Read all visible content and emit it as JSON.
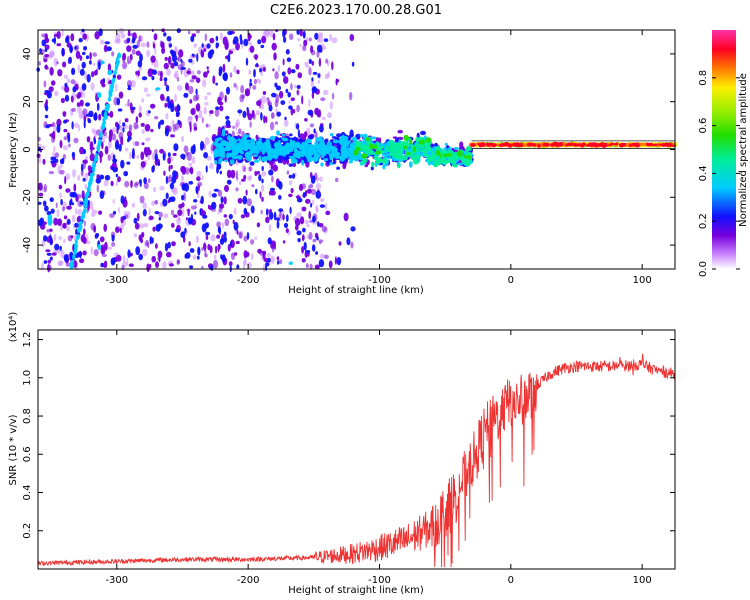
{
  "title": "C2E6.2023.170.00.28.G01",
  "chart_data": [
    {
      "type": "heatmap",
      "xlabel": "Height of straight line (km)",
      "ylabel": "Frequency (Hz)",
      "xlim": [
        -360,
        125
      ],
      "ylim": [
        -50,
        50
      ],
      "xticks": [
        -300,
        -200,
        -100,
        0,
        100
      ],
      "yticks": [
        -40,
        -20,
        0,
        20,
        40
      ],
      "colorbar": {
        "label": "Normalized spectral amplitude",
        "range": [
          0.0,
          1.0
        ],
        "ticks": [
          0.0,
          0.2,
          0.4,
          0.6,
          0.8
        ]
      },
      "features": [
        {
          "name": "diagonal streak",
          "start": [
            -335,
            -50
          ],
          "end": [
            -298,
            40
          ]
        },
        {
          "name": "signal band",
          "x_range": [
            -225,
            -30
          ],
          "center_hz": 0
        },
        {
          "name": "carrier line",
          "x_range": [
            -30,
            125
          ],
          "freq_hz": 2
        }
      ]
    },
    {
      "type": "line",
      "xlabel": "Height of straight line (km)",
      "ylabel": "SNR (10 * v/v)",
      "y_multiplier": "(x10⁴)",
      "xlim": [
        -360,
        125
      ],
      "ylim": [
        0,
        1.25
      ],
      "xticks": [
        -300,
        -200,
        -100,
        0,
        100
      ],
      "yticks": [
        0.2,
        0.4,
        0.6,
        0.8,
        1.0,
        1.2
      ],
      "color": "#ee3333",
      "series": [
        {
          "name": "SNR",
          "x": [
            -360,
            -300,
            -250,
            -200,
            -150,
            -120,
            -100,
            -80,
            -60,
            -50,
            -40,
            -30,
            -20,
            -10,
            0,
            10,
            20,
            30,
            40,
            50,
            60,
            80,
            100,
            110,
            125
          ],
          "y": [
            0.03,
            0.04,
            0.05,
            0.05,
            0.06,
            0.08,
            0.11,
            0.15,
            0.22,
            0.3,
            0.42,
            0.55,
            0.72,
            0.8,
            0.88,
            0.88,
            0.96,
            1.02,
            1.05,
            1.06,
            1.06,
            1.06,
            1.07,
            1.04,
            1.02
          ]
        }
      ]
    }
  ]
}
